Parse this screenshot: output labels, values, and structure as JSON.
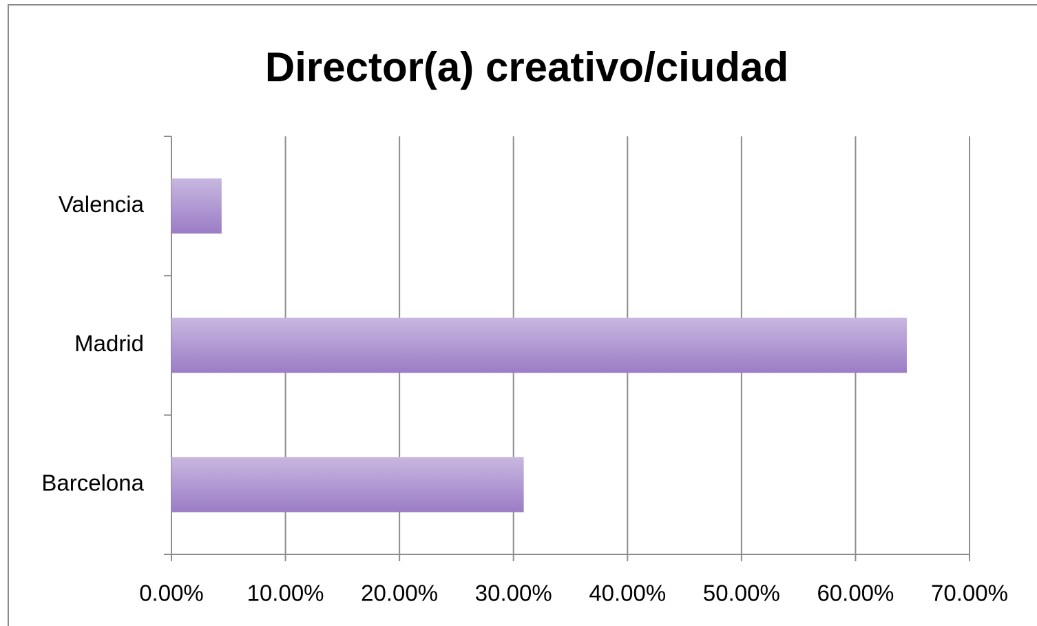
{
  "chart_data": {
    "type": "bar",
    "orientation": "horizontal",
    "title": "Director(a) creativo/ciudad",
    "categories": [
      "Valencia",
      "Madrid",
      "Barcelona"
    ],
    "values": [
      4.4,
      64.5,
      30.9
    ],
    "color": "#9b7cc6",
    "xlim": [
      0,
      70
    ],
    "xticks": [
      {
        "value": 0,
        "label": "0.00%"
      },
      {
        "value": 10,
        "label": "10.00%"
      },
      {
        "value": 20,
        "label": "20.00%"
      },
      {
        "value": 30,
        "label": "30.00%"
      },
      {
        "value": 40,
        "label": "40.00%"
      },
      {
        "value": 50,
        "label": "50.00%"
      },
      {
        "value": 60,
        "label": "60.00%"
      },
      {
        "value": 70,
        "label": "70.00%"
      }
    ],
    "grid": true
  }
}
